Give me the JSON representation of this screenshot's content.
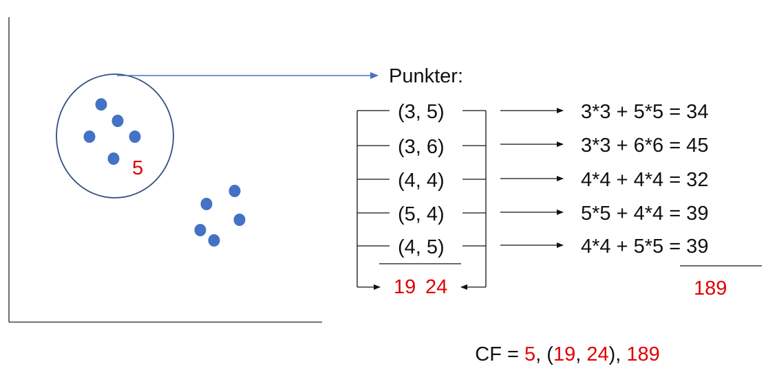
{
  "colors": {
    "point_fill": "#4472c4",
    "circle_stroke": "#2f4f7f",
    "arrow_blue": "#4472c4",
    "highlight_red": "#e00000",
    "text": "#111111"
  },
  "cluster": {
    "count_label": "5"
  },
  "points_header": "Punkter:",
  "points": [
    {
      "label": "(3, 5)",
      "calc": "3*3 + 5*5 = 34"
    },
    {
      "label": "(3, 6)",
      "calc": "3*3 + 6*6 = 45"
    },
    {
      "label": "(4, 4)",
      "calc": "4*4 + 4*4 = 32"
    },
    {
      "label": "(5, 4)",
      "calc": "5*5 + 4*4 = 39"
    },
    {
      "label": "(4, 5)",
      "calc": "4*4 + 5*5 = 39"
    }
  ],
  "sums": {
    "x_sum": "19",
    "y_sum": "24",
    "sq_sum": "189"
  },
  "cf_formula": {
    "prefix": "CF = ",
    "n": "5",
    "sep1": ", (",
    "ls_x": "19",
    "sep2": ", ",
    "ls_y": "24",
    "sep3": "), ",
    "ss": "189"
  }
}
